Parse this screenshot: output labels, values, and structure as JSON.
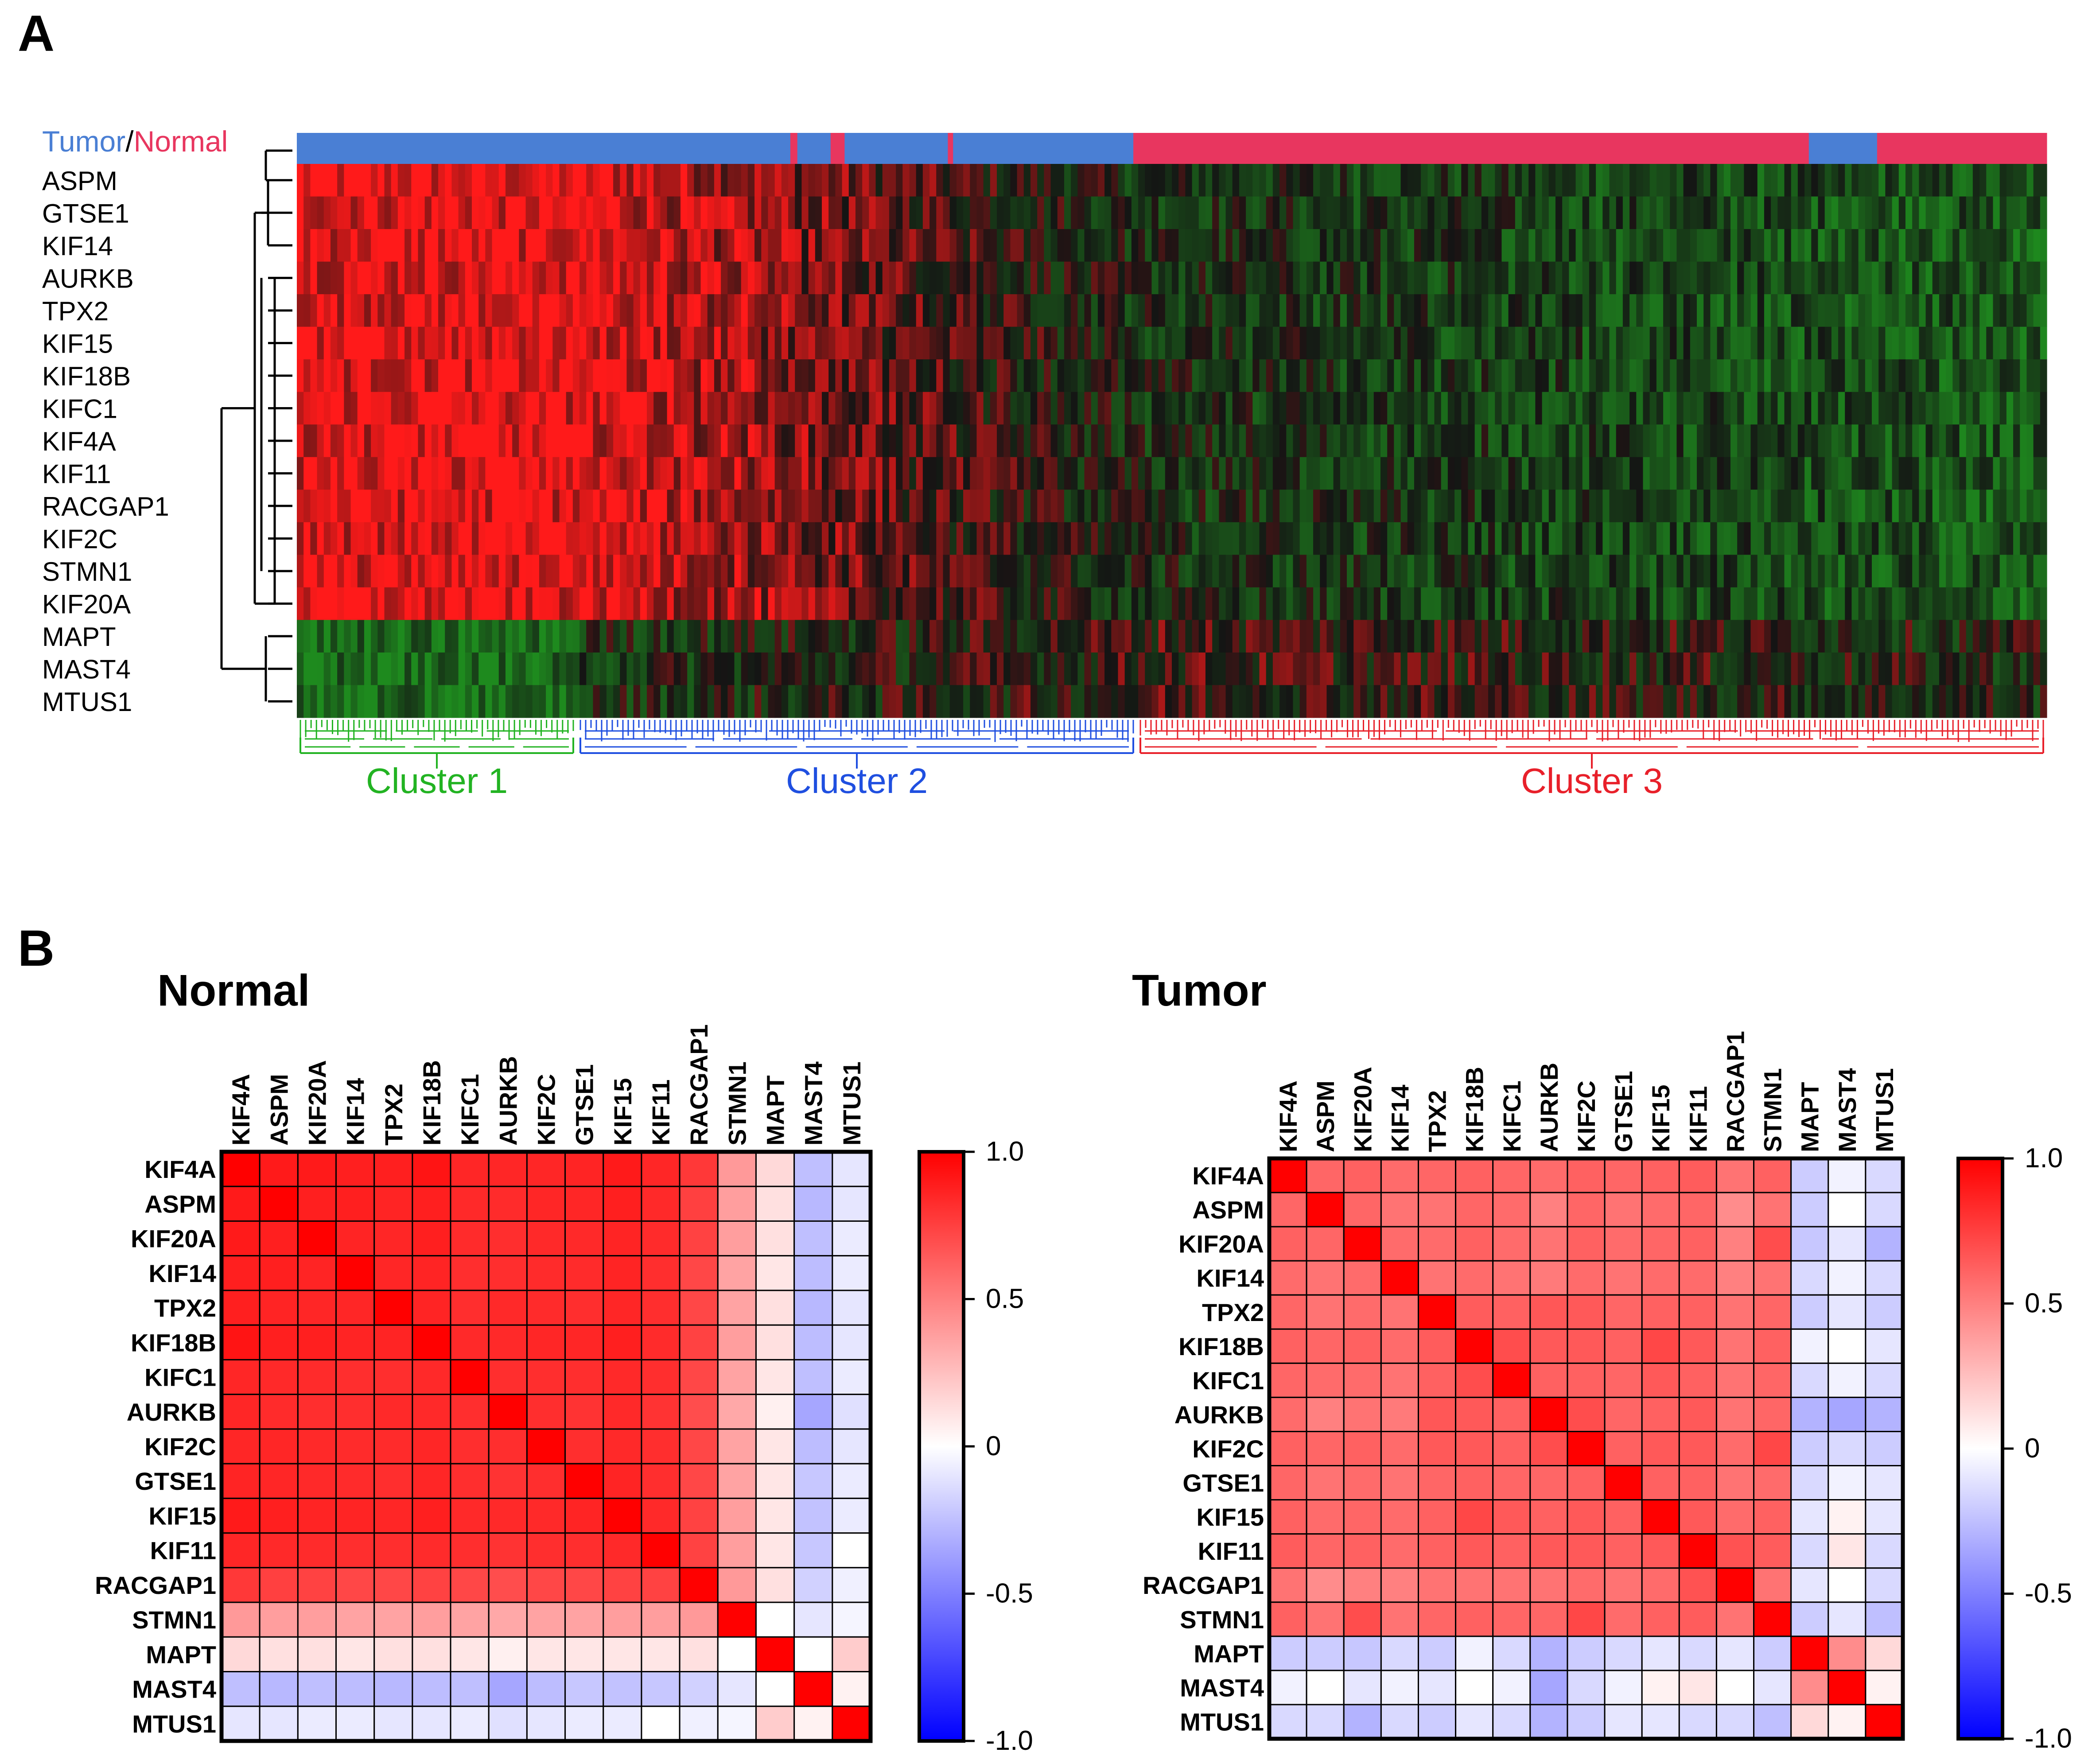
{
  "panel_a": {
    "letter": "A",
    "annotation_label_tumor": "Tumor",
    "annotation_label_sep": "/",
    "annotation_label_normal": "Normal",
    "colors": {
      "tumor": "#4a7fd4",
      "normal": "#e8365f",
      "heat_high": "#ff1a1a",
      "heat_mid": "#141414",
      "heat_low": "#1e8a1e",
      "cluster1": "#22b322",
      "cluster2": "#1f4fe0",
      "cluster3": "#e8202a"
    },
    "clusters": [
      {
        "label": "Cluster 1",
        "color": "#22b322"
      },
      {
        "label": "Cluster 2",
        "color": "#1f4fe0"
      },
      {
        "label": "Cluster 3",
        "color": "#e8202a"
      }
    ]
  },
  "panel_b": {
    "letter": "B",
    "colorbar_ticks": [
      "1.0",
      "0.5",
      "0",
      "-0.5",
      "-1.0"
    ],
    "colorscale": {
      "high": "#ff0000",
      "mid": "#ffffff",
      "low": "#0000ff"
    }
  },
  "chart_data": [
    {
      "type": "heatmap",
      "title": "",
      "rows": [
        "ASPM",
        "GTSE1",
        "KIF14",
        "AURKB",
        "TPX2",
        "KIF15",
        "KIF18B",
        "KIFC1",
        "KIF4A",
        "KIF11",
        "RACGAP1",
        "KIF2C",
        "STMN1",
        "KIF20A",
        "MAPT",
        "MAST4",
        "MTUS1"
      ],
      "column_annotation": [
        {
          "group": "Tumor",
          "start_fraction": 0.0,
          "end_fraction": 0.282
        },
        {
          "group": "Normal",
          "start_fraction": 0.282,
          "end_fraction": 0.286
        },
        {
          "group": "Tumor",
          "start_fraction": 0.286,
          "end_fraction": 0.305
        },
        {
          "group": "Normal",
          "start_fraction": 0.305,
          "end_fraction": 0.313
        },
        {
          "group": "Tumor",
          "start_fraction": 0.313,
          "end_fraction": 0.372
        },
        {
          "group": "Normal",
          "start_fraction": 0.372,
          "end_fraction": 0.375
        },
        {
          "group": "Tumor",
          "start_fraction": 0.375,
          "end_fraction": 0.478
        },
        {
          "group": "Normal",
          "start_fraction": 0.478,
          "end_fraction": 0.864
        },
        {
          "group": "Tumor",
          "start_fraction": 0.864,
          "end_fraction": 0.903
        },
        {
          "group": "Normal",
          "start_fraction": 0.903,
          "end_fraction": 1.0
        }
      ],
      "column_clusters": [
        {
          "name": "Cluster 1",
          "start_fraction": 0.0,
          "end_fraction": 0.16
        },
        {
          "name": "Cluster 2",
          "start_fraction": 0.16,
          "end_fraction": 0.48
        },
        {
          "name": "Cluster 3",
          "start_fraction": 0.48,
          "end_fraction": 1.0
        }
      ],
      "row_groups": [
        {
          "genes": [
            "ASPM",
            "GTSE1",
            "KIF14",
            "AURKB",
            "TPX2",
            "KIF15",
            "KIF18B",
            "KIFC1",
            "KIF4A",
            "KIF11",
            "RACGAP1",
            "KIF2C",
            "STMN1",
            "KIF20A"
          ],
          "pattern": "high in Cluster 1, low in Cluster 3"
        },
        {
          "genes": [
            "MAPT",
            "MAST4",
            "MTUS1"
          ],
          "pattern": "low in Cluster 1, high in Cluster 3"
        }
      ]
    },
    {
      "type": "heatmap",
      "title": "Normal",
      "genes": [
        "KIF4A",
        "ASPM",
        "KIF20A",
        "KIF14",
        "TPX2",
        "KIF18B",
        "KIFC1",
        "AURKB",
        "KIF2C",
        "GTSE1",
        "KIF15",
        "KIF11",
        "RACGAP1",
        "STMN1",
        "MAPT",
        "MAST4",
        "MTUS1"
      ],
      "range": [
        -1.0,
        1.0
      ],
      "matrix": [
        [
          1.0,
          0.9,
          0.9,
          0.88,
          0.88,
          0.92,
          0.85,
          0.85,
          0.85,
          0.86,
          0.9,
          0.85,
          0.78,
          0.4,
          0.15,
          -0.25,
          -0.1
        ],
        [
          0.9,
          1.0,
          0.88,
          0.88,
          0.86,
          0.88,
          0.84,
          0.83,
          0.85,
          0.85,
          0.88,
          0.84,
          0.75,
          0.38,
          0.12,
          -0.28,
          -0.1
        ],
        [
          0.9,
          0.88,
          1.0,
          0.86,
          0.85,
          0.88,
          0.83,
          0.82,
          0.84,
          0.84,
          0.86,
          0.83,
          0.74,
          0.38,
          0.12,
          -0.25,
          -0.08
        ],
        [
          0.88,
          0.88,
          0.86,
          1.0,
          0.85,
          0.86,
          0.82,
          0.82,
          0.83,
          0.83,
          0.86,
          0.82,
          0.72,
          0.36,
          0.1,
          -0.26,
          -0.08
        ],
        [
          0.88,
          0.86,
          0.85,
          0.85,
          1.0,
          0.86,
          0.82,
          0.84,
          0.83,
          0.82,
          0.85,
          0.82,
          0.72,
          0.36,
          0.12,
          -0.28,
          -0.1
        ],
        [
          0.92,
          0.88,
          0.88,
          0.86,
          0.86,
          1.0,
          0.84,
          0.84,
          0.85,
          0.85,
          0.88,
          0.83,
          0.74,
          0.38,
          0.12,
          -0.26,
          -0.1
        ],
        [
          0.85,
          0.84,
          0.83,
          0.82,
          0.82,
          0.84,
          1.0,
          0.82,
          0.82,
          0.82,
          0.84,
          0.82,
          0.72,
          0.36,
          0.1,
          -0.25,
          -0.08
        ],
        [
          0.85,
          0.83,
          0.82,
          0.82,
          0.84,
          0.84,
          0.82,
          1.0,
          0.82,
          0.8,
          0.84,
          0.8,
          0.7,
          0.34,
          0.06,
          -0.35,
          -0.12
        ],
        [
          0.85,
          0.85,
          0.84,
          0.83,
          0.83,
          0.85,
          0.82,
          0.82,
          1.0,
          0.82,
          0.84,
          0.82,
          0.72,
          0.36,
          0.1,
          -0.26,
          -0.1
        ],
        [
          0.86,
          0.85,
          0.84,
          0.83,
          0.82,
          0.85,
          0.82,
          0.8,
          0.82,
          1.0,
          0.86,
          0.82,
          0.72,
          0.36,
          0.1,
          -0.22,
          -0.08
        ],
        [
          0.9,
          0.88,
          0.86,
          0.86,
          0.85,
          0.88,
          0.84,
          0.84,
          0.84,
          0.86,
          1.0,
          0.84,
          0.74,
          0.38,
          0.1,
          -0.24,
          -0.08
        ],
        [
          0.85,
          0.84,
          0.83,
          0.82,
          0.82,
          0.83,
          0.82,
          0.8,
          0.82,
          0.82,
          0.84,
          1.0,
          0.74,
          0.38,
          0.1,
          -0.22,
          0.0
        ],
        [
          0.78,
          0.75,
          0.74,
          0.72,
          0.72,
          0.74,
          0.72,
          0.7,
          0.72,
          0.72,
          0.74,
          0.74,
          1.0,
          0.4,
          0.12,
          -0.18,
          -0.06
        ],
        [
          0.4,
          0.38,
          0.38,
          0.36,
          0.36,
          0.38,
          0.36,
          0.34,
          0.36,
          0.36,
          0.38,
          0.38,
          0.4,
          1.0,
          0.0,
          -0.1,
          -0.04
        ],
        [
          0.15,
          0.12,
          0.12,
          0.1,
          0.12,
          0.12,
          0.1,
          0.06,
          0.1,
          0.1,
          0.1,
          0.1,
          0.12,
          0.0,
          1.0,
          0.0,
          0.2
        ],
        [
          -0.25,
          -0.28,
          -0.25,
          -0.26,
          -0.28,
          -0.26,
          -0.25,
          -0.35,
          -0.26,
          -0.22,
          -0.24,
          -0.22,
          -0.18,
          -0.1,
          0.0,
          1.0,
          0.05
        ],
        [
          -0.1,
          -0.1,
          -0.08,
          -0.08,
          -0.1,
          -0.1,
          -0.08,
          -0.12,
          -0.1,
          -0.08,
          -0.08,
          0.0,
          -0.06,
          -0.04,
          0.2,
          0.05,
          1.0
        ]
      ]
    },
    {
      "type": "heatmap",
      "title": "Tumor",
      "genes": [
        "KIF4A",
        "ASPM",
        "KIF20A",
        "KIF14",
        "TPX2",
        "KIF18B",
        "KIFC1",
        "AURKB",
        "KIF2C",
        "GTSE1",
        "KIF15",
        "KIF11",
        "RACGAP1",
        "STMN1",
        "MAPT",
        "MAST4",
        "MTUS1"
      ],
      "range": [
        -1.0,
        1.0
      ],
      "matrix": [
        [
          1.0,
          0.6,
          0.62,
          0.58,
          0.6,
          0.62,
          0.6,
          0.58,
          0.62,
          0.6,
          0.62,
          0.64,
          0.55,
          0.62,
          -0.2,
          -0.05,
          -0.15
        ],
        [
          0.6,
          1.0,
          0.6,
          0.55,
          0.55,
          0.6,
          0.58,
          0.5,
          0.6,
          0.55,
          0.58,
          0.6,
          0.45,
          0.55,
          -0.2,
          0.0,
          -0.15
        ],
        [
          0.62,
          0.6,
          1.0,
          0.58,
          0.58,
          0.62,
          0.58,
          0.55,
          0.62,
          0.58,
          0.6,
          0.62,
          0.5,
          0.7,
          -0.22,
          -0.1,
          -0.3
        ],
        [
          0.58,
          0.55,
          0.58,
          1.0,
          0.55,
          0.58,
          0.55,
          0.52,
          0.58,
          0.55,
          0.58,
          0.58,
          0.5,
          0.55,
          -0.15,
          -0.05,
          -0.15
        ],
        [
          0.6,
          0.55,
          0.58,
          0.55,
          1.0,
          0.64,
          0.62,
          0.66,
          0.65,
          0.6,
          0.62,
          0.62,
          0.55,
          0.6,
          -0.2,
          -0.1,
          -0.2
        ],
        [
          0.62,
          0.6,
          0.62,
          0.58,
          0.64,
          1.0,
          0.7,
          0.65,
          0.65,
          0.62,
          0.72,
          0.65,
          0.55,
          0.62,
          -0.05,
          0.0,
          -0.1
        ],
        [
          0.6,
          0.58,
          0.58,
          0.55,
          0.62,
          0.7,
          1.0,
          0.62,
          0.62,
          0.6,
          0.65,
          0.62,
          0.55,
          0.6,
          -0.15,
          -0.05,
          -0.15
        ],
        [
          0.58,
          0.5,
          0.55,
          0.52,
          0.66,
          0.65,
          0.62,
          1.0,
          0.7,
          0.6,
          0.62,
          0.65,
          0.55,
          0.6,
          -0.3,
          -0.35,
          -0.3
        ],
        [
          0.62,
          0.6,
          0.62,
          0.58,
          0.65,
          0.65,
          0.62,
          0.7,
          1.0,
          0.62,
          0.65,
          0.65,
          0.58,
          0.72,
          -0.2,
          -0.15,
          -0.2
        ],
        [
          0.6,
          0.55,
          0.58,
          0.55,
          0.6,
          0.62,
          0.6,
          0.6,
          0.62,
          1.0,
          0.62,
          0.62,
          0.55,
          0.58,
          -0.15,
          -0.05,
          -0.1
        ],
        [
          0.62,
          0.58,
          0.6,
          0.58,
          0.62,
          0.72,
          0.65,
          0.62,
          0.65,
          0.62,
          1.0,
          0.65,
          0.58,
          0.62,
          -0.1,
          0.05,
          -0.1
        ],
        [
          0.64,
          0.6,
          0.62,
          0.58,
          0.62,
          0.65,
          0.62,
          0.65,
          0.65,
          0.62,
          0.65,
          1.0,
          0.68,
          0.64,
          -0.15,
          0.1,
          -0.15
        ],
        [
          0.55,
          0.45,
          0.5,
          0.5,
          0.55,
          0.55,
          0.55,
          0.55,
          0.58,
          0.55,
          0.58,
          0.68,
          1.0,
          0.55,
          -0.1,
          0.0,
          -0.15
        ],
        [
          0.62,
          0.55,
          0.7,
          0.55,
          0.6,
          0.62,
          0.6,
          0.6,
          0.72,
          0.58,
          0.62,
          0.64,
          0.55,
          1.0,
          -0.2,
          -0.1,
          -0.25
        ],
        [
          -0.2,
          -0.2,
          -0.22,
          -0.15,
          -0.2,
          -0.05,
          -0.15,
          -0.3,
          -0.2,
          -0.15,
          -0.1,
          -0.15,
          -0.1,
          -0.2,
          1.0,
          0.45,
          0.15
        ],
        [
          -0.05,
          0.0,
          -0.1,
          -0.05,
          -0.1,
          0.0,
          -0.05,
          -0.35,
          -0.15,
          -0.05,
          0.05,
          0.1,
          0.0,
          -0.1,
          0.45,
          1.0,
          0.05
        ],
        [
          -0.15,
          -0.15,
          -0.3,
          -0.15,
          -0.2,
          -0.1,
          -0.15,
          -0.3,
          -0.2,
          -0.1,
          -0.1,
          -0.15,
          -0.15,
          -0.25,
          0.15,
          0.05,
          1.0
        ]
      ]
    }
  ]
}
